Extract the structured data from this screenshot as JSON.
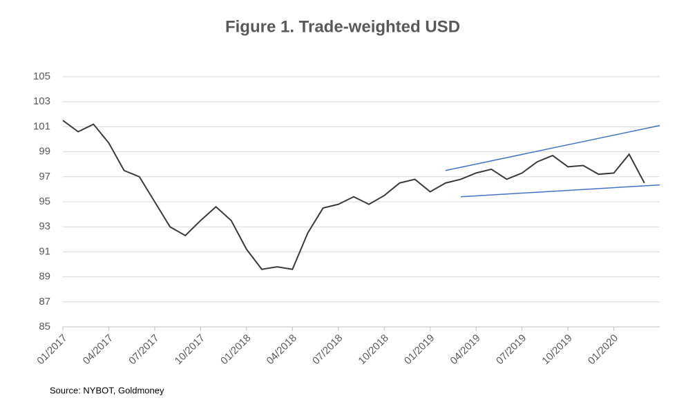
{
  "chart_data": {
    "type": "line",
    "title": "Figure 1. Trade-weighted USD",
    "source": "Source: NYBOT, Goldmoney",
    "x": [
      "01/2017",
      "02/2017",
      "03/2017",
      "04/2017",
      "05/2017",
      "06/2017",
      "07/2017",
      "08/2017",
      "09/2017",
      "10/2017",
      "11/2017",
      "12/2017",
      "01/2018",
      "02/2018",
      "03/2018",
      "04/2018",
      "05/2018",
      "06/2018",
      "07/2018",
      "08/2018",
      "09/2018",
      "10/2018",
      "11/2018",
      "12/2018",
      "01/2019",
      "02/2019",
      "03/2019",
      "04/2019",
      "05/2019",
      "06/2019",
      "07/2019",
      "08/2019",
      "09/2019",
      "10/2019",
      "11/2019",
      "12/2019",
      "01/2020",
      "02/2020",
      "03/2020"
    ],
    "values": [
      101.5,
      100.6,
      101.2,
      99.7,
      97.5,
      97.0,
      95.0,
      93.0,
      92.3,
      93.5,
      94.6,
      93.5,
      91.2,
      89.6,
      89.8,
      89.6,
      92.5,
      94.5,
      94.8,
      95.4,
      94.8,
      95.5,
      96.5,
      96.8,
      95.8,
      96.5,
      96.8,
      97.3,
      97.6,
      96.8,
      97.3,
      98.2,
      98.7,
      97.8,
      97.9,
      97.2,
      97.3,
      98.8,
      96.5
    ],
    "color": "#3a3a3a",
    "xlim": [
      "01/2017",
      "04/2020"
    ],
    "xticks": [
      "01/2017",
      "04/2017",
      "07/2017",
      "10/2017",
      "01/2018",
      "04/2018",
      "07/2018",
      "10/2018",
      "01/2019",
      "04/2019",
      "07/2019",
      "10/2019",
      "01/2020"
    ],
    "ylim": [
      85,
      105
    ],
    "yticks": [
      85,
      87,
      89,
      91,
      93,
      95,
      97,
      99,
      101,
      103,
      105
    ],
    "grid": true,
    "trend_lines": [
      {
        "x": [
          "02/2019",
          "04/2020"
        ],
        "y": [
          97.5,
          101.1
        ],
        "color": "#4472c4"
      },
      {
        "x": [
          "03/2019",
          "04/2020"
        ],
        "y": [
          95.4,
          96.35
        ],
        "color": "#4472c4"
      }
    ]
  }
}
